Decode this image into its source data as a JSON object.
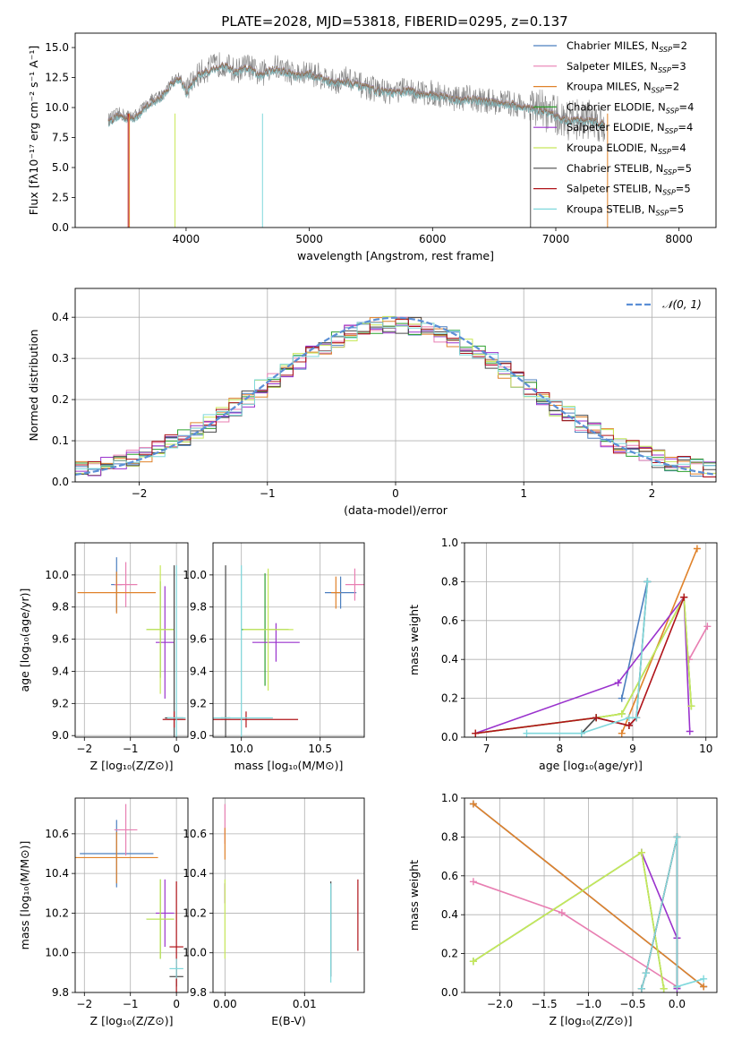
{
  "figure_title": "PLATE=2028, MJD=53818, FIBERID=0295, z=0.137",
  "colors": {
    "Chabrier MILES": "#4c7fbf",
    "Salpeter MILES": "#e87fb2",
    "Kroupa MILES": "#e0822a",
    "Chabrier ELODIE": "#2ca02c",
    "Salpeter ELODIE": "#9a32cd",
    "Kroupa ELODIE": "#c8e85a",
    "Chabrier STELIB": "#4a4a4a",
    "Salpeter STELIB": "#b0141a",
    "Kroupa STELIB": "#7fd8dc",
    "normal": "#5b8fd6",
    "grid": "#b0b0b0"
  },
  "chart_data": [
    {
      "id": "spectrum",
      "type": "line",
      "title": "PLATE=2028, MJD=53818, FIBERID=0295, z=0.137",
      "xlabel": "wavelength [Angstrom, rest frame]",
      "ylabel": "Flux [fλ10⁻¹⁷ erg cm⁻² s⁻¹ A⁻¹]",
      "xlim": [
        3100,
        8300
      ],
      "ylim": [
        0,
        16.2
      ],
      "xticks": [
        4000,
        5000,
        6000,
        7000,
        8000
      ],
      "yticks": [
        0.0,
        2.5,
        5.0,
        7.5,
        10.0,
        12.5,
        15.0
      ],
      "grid": false,
      "legend_position": "right",
      "legend": [
        {
          "label": "Chabrier MILES, N",
          "sub": "SSP",
          "suffix": "=2"
        },
        {
          "label": "Salpeter MILES, N",
          "sub": "SSP",
          "suffix": "=3"
        },
        {
          "label": "Kroupa MILES, N",
          "sub": "SSP",
          "suffix": "=2"
        },
        {
          "label": "Chabrier ELODIE, N",
          "sub": "SSP",
          "suffix": "=4"
        },
        {
          "label": "Salpeter ELODIE, N",
          "sub": "SSP",
          "suffix": "=4"
        },
        {
          "label": "Kroupa ELODIE, N",
          "sub": "SSP",
          "suffix": "=4"
        },
        {
          "label": "Chabrier STELIB, N",
          "sub": "SSP",
          "suffix": "=5"
        },
        {
          "label": "Salpeter STELIB, N",
          "sub": "SSP",
          "suffix": "=5"
        },
        {
          "label": "Kroupa STELIB, N",
          "sub": "SSP",
          "suffix": "=5"
        }
      ],
      "data_series": {
        "name": "data",
        "x": [
          3370,
          3450,
          3530,
          3600,
          3700,
          3800,
          3900,
          3950,
          4000,
          4100,
          4200,
          4300,
          4400,
          4500,
          4600,
          4700,
          4800,
          4900,
          5000,
          5100,
          5200,
          5300,
          5400,
          5500,
          5600,
          5700,
          5800,
          5900,
          6000,
          6100,
          6200,
          6300,
          6400,
          6500,
          6600,
          6700,
          6800,
          6900,
          7000,
          7100,
          7200,
          7300,
          7400
        ],
        "y": [
          9.0,
          9.5,
          9.3,
          9.4,
          10.5,
          11.0,
          12.3,
          12.6,
          11.4,
          12.8,
          13.3,
          13.7,
          13.0,
          13.5,
          12.7,
          13.4,
          13.2,
          12.7,
          12.9,
          12.6,
          12.1,
          12.4,
          11.9,
          11.6,
          11.4,
          11.3,
          11.5,
          11.2,
          11.2,
          11.0,
          10.7,
          10.8,
          10.6,
          10.5,
          10.4,
          10.2,
          10.0,
          9.8,
          9.3,
          9.0,
          9.0,
          9.0,
          8.6
        ]
      },
      "model_x": [
        3370,
        3450,
        3530,
        3600,
        3700,
        3800,
        3900,
        3950,
        4000,
        4100,
        4200,
        4300,
        4400,
        4500,
        4600,
        4700,
        4800,
        4900,
        5000,
        5100,
        5200,
        5300,
        5400,
        5500,
        5600,
        5700,
        5800,
        5900,
        6000,
        6100,
        6200,
        6300,
        6400,
        6500,
        6600,
        6700,
        6800,
        6900,
        7000,
        7100,
        7200,
        7300,
        7400
      ],
      "model_y": [
        8.8,
        9.3,
        9.1,
        9.2,
        10.3,
        10.8,
        12.2,
        12.4,
        11.2,
        12.7,
        13.1,
        13.5,
        12.9,
        13.3,
        12.6,
        13.2,
        13.0,
        12.6,
        12.8,
        12.4,
        12.0,
        12.2,
        11.8,
        11.5,
        11.3,
        11.2,
        11.4,
        11.1,
        11.0,
        10.9,
        10.6,
        10.7,
        10.5,
        10.4,
        10.3,
        10.1,
        9.9,
        9.7,
        9.2,
        8.9,
        8.9,
        8.9,
        8.5
      ]
    },
    {
      "id": "residuals",
      "type": "histogram",
      "xlabel": "(data-model)/error",
      "ylabel": "Normed distribution",
      "xlim": [
        -2.5,
        2.5
      ],
      "ylim": [
        0,
        0.47
      ],
      "xticks": [
        -2,
        -1,
        0,
        1,
        2
      ],
      "yticks": [
        0.0,
        0.1,
        0.2,
        0.3,
        0.4
      ],
      "grid": true,
      "legend_position": "top-right",
      "legend": [
        {
          "label": "𝒩(0, 1)"
        }
      ],
      "bin_edges_start": -2.5,
      "bin_width": 0.1,
      "normal_curve": {
        "mu": 0,
        "sigma": 1
      }
    },
    {
      "id": "age_vs_Z",
      "type": "errorbar",
      "xlabel": "Z [log₁₀(Z/Z⊙)]",
      "ylabel": "age  [log₁₀(age/yr)]",
      "xlim": [
        -2.2,
        0.25
      ],
      "ylim": [
        8.99,
        10.2
      ],
      "xticks": [
        -2,
        -1,
        0
      ],
      "yticks": [
        9.0,
        9.2,
        9.4,
        9.6,
        9.8,
        10.0
      ],
      "grid": true,
      "points": [
        {
          "series": "Chabrier MILES",
          "x": -1.3,
          "y": 9.94,
          "xerr": 0.12,
          "yerr": 0.17
        },
        {
          "series": "Salpeter MILES",
          "x": -1.1,
          "y": 9.94,
          "xerr": 0.25,
          "yerr": 0.14
        },
        {
          "series": "Kroupa MILES",
          "x": -1.3,
          "y": 9.89,
          "xerr": 0.85,
          "yerr": 0.13
        },
        {
          "series": "Chabrier ELODIE",
          "x": -0.35,
          "y": 9.66,
          "xerr": 0.3,
          "yerr": 0.3
        },
        {
          "series": "Salpeter ELODIE",
          "x": -0.25,
          "y": 9.58,
          "xerr": 0.2,
          "yerr": 0.35
        },
        {
          "series": "Kroupa ELODIE",
          "x": -0.35,
          "y": 9.66,
          "xerr": 0.3,
          "yerr": 0.4
        },
        {
          "series": "Chabrier STELIB",
          "x": -0.05,
          "y": 9.11,
          "xerr": 0.2,
          "yerr": 0.95
        },
        {
          "series": "Salpeter STELIB",
          "x": -0.05,
          "y": 9.1,
          "xerr": 0.25,
          "yerr": 0.05
        },
        {
          "series": "Kroupa STELIB",
          "x": 0.0,
          "y": 9.11,
          "xerr": 0.2,
          "yerr": 0.95
        }
      ]
    },
    {
      "id": "age_vs_mass",
      "type": "errorbar",
      "xlabel": "mass [log₁₀(M/M⊙)]",
      "ylabel": "",
      "xlim": [
        9.82,
        10.78
      ],
      "ylim": [
        8.99,
        10.2
      ],
      "xticks": [
        10.0,
        10.5
      ],
      "yticks": [
        9.0,
        9.2,
        9.4,
        9.6,
        9.8,
        10.0
      ],
      "grid": true,
      "points": [
        {
          "series": "Chabrier MILES",
          "x": 10.63,
          "y": 9.89,
          "xerr": 0.1,
          "yerr": 0.1
        },
        {
          "series": "Salpeter MILES",
          "x": 10.72,
          "y": 9.94,
          "xerr": 0.06,
          "yerr": 0.1
        },
        {
          "series": "Kroupa MILES",
          "x": 10.6,
          "y": 9.89,
          "xerr": 0.03,
          "yerr": 0.1
        },
        {
          "series": "Chabrier ELODIE",
          "x": 10.15,
          "y": 9.66,
          "xerr": 0.15,
          "yerr": 0.35
        },
        {
          "series": "Salpeter ELODIE",
          "x": 10.22,
          "y": 9.58,
          "xerr": 0.15,
          "yerr": 0.12
        },
        {
          "series": "Kroupa ELODIE",
          "x": 10.17,
          "y": 9.66,
          "xerr": 0.16,
          "yerr": 0.38
        },
        {
          "series": "Chabrier STELIB",
          "x": 9.9,
          "y": 9.11,
          "xerr": 0.03,
          "yerr": 0.95
        },
        {
          "series": "Salpeter STELIB",
          "x": 10.03,
          "y": 9.1,
          "xerr": 0.33,
          "yerr": 0.05
        },
        {
          "series": "Kroupa STELIB",
          "x": 10.0,
          "y": 9.11,
          "xerr": 0.2,
          "yerr": 0.95
        }
      ]
    },
    {
      "id": "weight_vs_age",
      "type": "line",
      "xlabel": "age  [log₁₀(age/yr)]",
      "ylabel": "mass weight",
      "xlim": [
        6.7,
        10.15
      ],
      "ylim": [
        0,
        1.0
      ],
      "xticks": [
        7,
        8,
        9,
        10
      ],
      "yticks": [
        0.0,
        0.2,
        0.4,
        0.6,
        0.8,
        1.0
      ],
      "grid": true,
      "series": [
        {
          "name": "Chabrier MILES",
          "x": [
            8.85,
            9.2
          ],
          "y": [
            0.2,
            0.8
          ]
        },
        {
          "name": "Salpeter MILES",
          "x": [
            9.77,
            10.02
          ],
          "y": [
            0.4,
            0.57
          ]
        },
        {
          "name": "Kroupa MILES",
          "x": [
            8.85,
            9.88
          ],
          "y": [
            0.02,
            0.97
          ]
        },
        {
          "name": "Chabrier ELODIE",
          "x": [
            6.85,
            8.5,
            8.85,
            9.7,
            9.8
          ],
          "y": [
            0.02,
            0.1,
            0.12,
            0.72,
            0.16
          ]
        },
        {
          "name": "Salpeter ELODIE",
          "x": [
            6.85,
            8.8,
            9.7,
            9.78
          ],
          "y": [
            0.02,
            0.28,
            0.72,
            0.03
          ]
        },
        {
          "name": "Kroupa ELODIE",
          "x": [
            6.85,
            8.5,
            8.85,
            9.7,
            9.8
          ],
          "y": [
            0.02,
            0.1,
            0.12,
            0.72,
            0.16
          ]
        },
        {
          "name": "Chabrier STELIB",
          "x": [
            8.3,
            8.5,
            8.95,
            9.05,
            9.2
          ],
          "y": [
            0.02,
            0.1,
            0.06,
            0.1,
            0.8
          ]
        },
        {
          "name": "Salpeter STELIB",
          "x": [
            6.85,
            8.5,
            8.95,
            9.05,
            9.7
          ],
          "y": [
            0.02,
            0.1,
            0.06,
            0.1,
            0.72
          ]
        },
        {
          "name": "Kroupa STELIB",
          "x": [
            7.55,
            8.3,
            8.95,
            9.05,
            9.2
          ],
          "y": [
            0.02,
            0.02,
            0.1,
            0.1,
            0.8
          ]
        }
      ]
    },
    {
      "id": "mass_vs_Z",
      "type": "errorbar",
      "xlabel": "Z [log₁₀(Z/Z⊙)]",
      "ylabel": "mass [log₁₀(M/M⊙)]",
      "xlim": [
        -2.2,
        0.25
      ],
      "ylim": [
        9.8,
        10.78
      ],
      "xticks": [
        -2,
        -1,
        0
      ],
      "yticks": [
        9.8,
        10.0,
        10.2,
        10.4,
        10.6
      ],
      "grid": true,
      "points": [
        {
          "series": "Chabrier MILES",
          "x": -1.3,
          "y": 10.5,
          "xerr": 0.8,
          "yerr": 0.17
        },
        {
          "series": "Salpeter MILES",
          "x": -1.1,
          "y": 10.62,
          "xerr": 0.25,
          "yerr": 0.13
        },
        {
          "series": "Kroupa MILES",
          "x": -1.3,
          "y": 10.48,
          "xerr": 0.9,
          "yerr": 0.13
        },
        {
          "series": "Chabrier ELODIE",
          "x": -0.35,
          "y": 10.17,
          "xerr": 0.3,
          "yerr": 0.2
        },
        {
          "series": "Salpeter ELODIE",
          "x": -0.25,
          "y": 10.2,
          "xerr": 0.2,
          "yerr": 0.17
        },
        {
          "series": "Kroupa ELODIE",
          "x": -0.35,
          "y": 10.17,
          "xerr": 0.3,
          "yerr": 0.2
        },
        {
          "series": "Chabrier STELIB",
          "x": 0.0,
          "y": 9.88,
          "xerr": 0.15,
          "yerr": 0.05
        },
        {
          "series": "Salpeter STELIB",
          "x": 0.0,
          "y": 10.03,
          "xerr": 0.15,
          "yerr": 0.33
        },
        {
          "series": "Kroupa STELIB",
          "x": 0.0,
          "y": 9.92,
          "xerr": 0.15,
          "yerr": 0.05
        }
      ]
    },
    {
      "id": "mass_vs_ebv",
      "type": "errorbar",
      "xlabel": "E(B-V)",
      "ylabel": "",
      "xlim": [
        -0.0015,
        0.0175
      ],
      "ylim": [
        9.8,
        10.78
      ],
      "xticks": [
        0.0,
        0.01
      ],
      "xtick_labels": [
        "0.00",
        "0.01"
      ],
      "yticks": [
        9.8,
        10.0,
        10.2,
        10.4,
        10.6
      ],
      "grid": true,
      "points": [
        {
          "series": "Salpeter MILES",
          "x": 0.0,
          "y": 10.65,
          "xerr": 0,
          "yerr": 0.1
        },
        {
          "series": "Kroupa MILES",
          "x": 0.0,
          "y": 10.55,
          "xerr": 0,
          "yerr": 0.08
        },
        {
          "series": "Salpeter ELODIE",
          "x": 0.0,
          "y": 10.3,
          "xerr": 0,
          "yerr": 0.05
        },
        {
          "series": "Kroupa ELODIE",
          "x": 0.0,
          "y": 10.17,
          "xerr": 0,
          "yerr": 0.2
        },
        {
          "series": "Chabrier STELIB",
          "x": 0.0133,
          "y": 10.12,
          "xerr": 0,
          "yerr": 0.24
        },
        {
          "series": "Kroupa STELIB",
          "x": 0.0133,
          "y": 10.1,
          "xerr": 0,
          "yerr": 0.25
        },
        {
          "series": "Salpeter STELIB",
          "x": 0.0167,
          "y": 10.19,
          "xerr": 0,
          "yerr": 0.18
        }
      ]
    },
    {
      "id": "weight_vs_Z",
      "type": "line",
      "xlabel": "Z [log₁₀(Z/Z⊙)]",
      "ylabel": "mass weight",
      "xlim": [
        -2.4,
        0.45
      ],
      "ylim": [
        0,
        1.0
      ],
      "xticks": [
        -2.0,
        -1.5,
        -1.0,
        -0.5,
        0.0
      ],
      "yticks": [
        0.0,
        0.2,
        0.4,
        0.6,
        0.8,
        1.0
      ],
      "grid": true,
      "series": [
        {
          "name": "Chabrier MILES",
          "x": [
            -2.3,
            0.3
          ],
          "y": [
            0.97,
            0.03
          ]
        },
        {
          "name": "Salpeter MILES",
          "x": [
            -2.3,
            -1.3,
            0.0
          ],
          "y": [
            0.57,
            0.41,
            0.03
          ]
        },
        {
          "name": "Kroupa MILES",
          "x": [
            -2.3,
            0.3
          ],
          "y": [
            0.97,
            0.03
          ]
        },
        {
          "name": "Chabrier ELODIE",
          "x": [
            -2.3,
            -0.4,
            -0.15
          ],
          "y": [
            0.16,
            0.72,
            0.02
          ]
        },
        {
          "name": "Salpeter ELODIE",
          "x": [
            -0.4,
            0.0,
            0.0
          ],
          "y": [
            0.72,
            0.28,
            0.02
          ]
        },
        {
          "name": "Kroupa ELODIE",
          "x": [
            -2.3,
            -0.4,
            -0.15
          ],
          "y": [
            0.16,
            0.72,
            0.02
          ]
        },
        {
          "name": "Chabrier STELIB",
          "x": [
            -0.4,
            -0.35,
            0.0,
            0.0
          ],
          "y": [
            0.02,
            0.1,
            0.8,
            0.03
          ]
        },
        {
          "name": "Salpeter STELIB",
          "x": [
            -0.4,
            -0.35,
            0.0,
            0.0
          ],
          "y": [
            0.02,
            0.1,
            0.8,
            0.03
          ]
        },
        {
          "name": "Kroupa STELIB",
          "x": [
            -0.4,
            -0.35,
            0.0,
            0.0,
            0.3
          ],
          "y": [
            0.02,
            0.1,
            0.8,
            0.03,
            0.07
          ]
        }
      ]
    }
  ]
}
